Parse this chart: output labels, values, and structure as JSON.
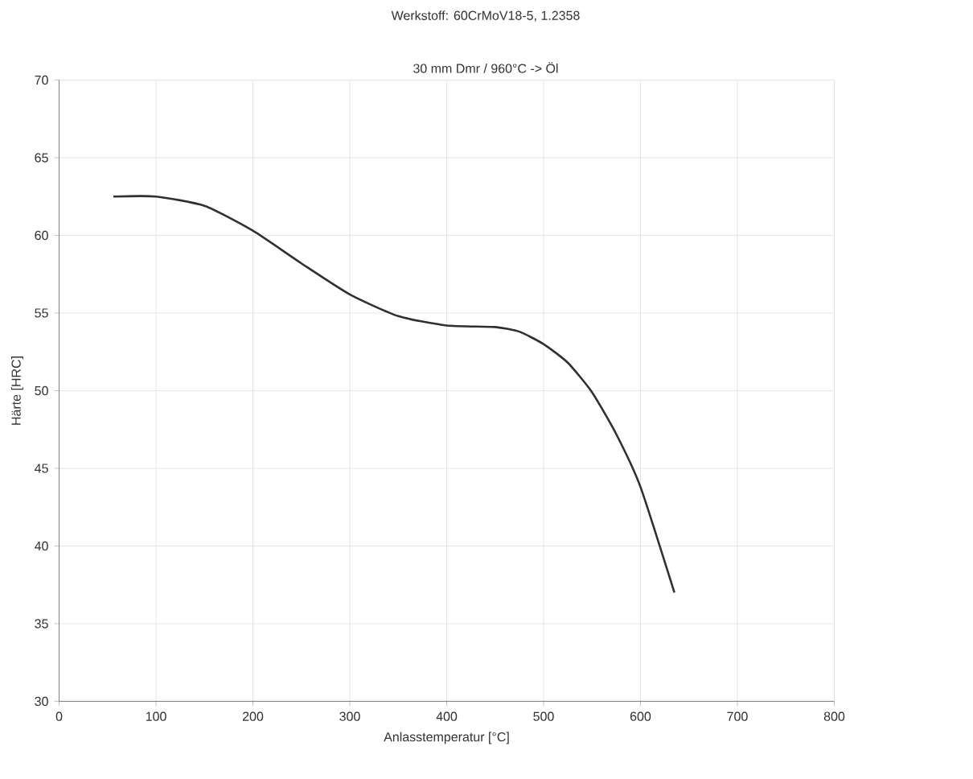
{
  "chart_data": {
    "type": "line",
    "title": "Werkstoff: 60CrMoV18-5, 1.2358",
    "subtitle": "30 mm Dmr / 960°C -> Öl",
    "xlabel": "Anlasstemperatur [°C]",
    "ylabel": "Härte [HRC]",
    "x": [
      56,
      100,
      150,
      200,
      250,
      300,
      350,
      400,
      450,
      475,
      500,
      525,
      550,
      575,
      600,
      635
    ],
    "series": [
      {
        "color": "#303030",
        "values": [
          62.5,
          62.5,
          61.9,
          60.3,
          58.2,
          56.2,
          54.8,
          54.2,
          54.1,
          53.8,
          53.0,
          51.8,
          49.9,
          47.2,
          43.8,
          37.0
        ]
      }
    ],
    "xlim": [
      0,
      800
    ],
    "ylim": [
      30,
      70
    ],
    "xticks": [
      0,
      100,
      200,
      300,
      400,
      500,
      600,
      700,
      800
    ],
    "yticks": [
      30,
      35,
      40,
      45,
      50,
      55,
      60,
      65,
      70
    ],
    "grid": true,
    "marker": "none",
    "line_style": "solid"
  }
}
